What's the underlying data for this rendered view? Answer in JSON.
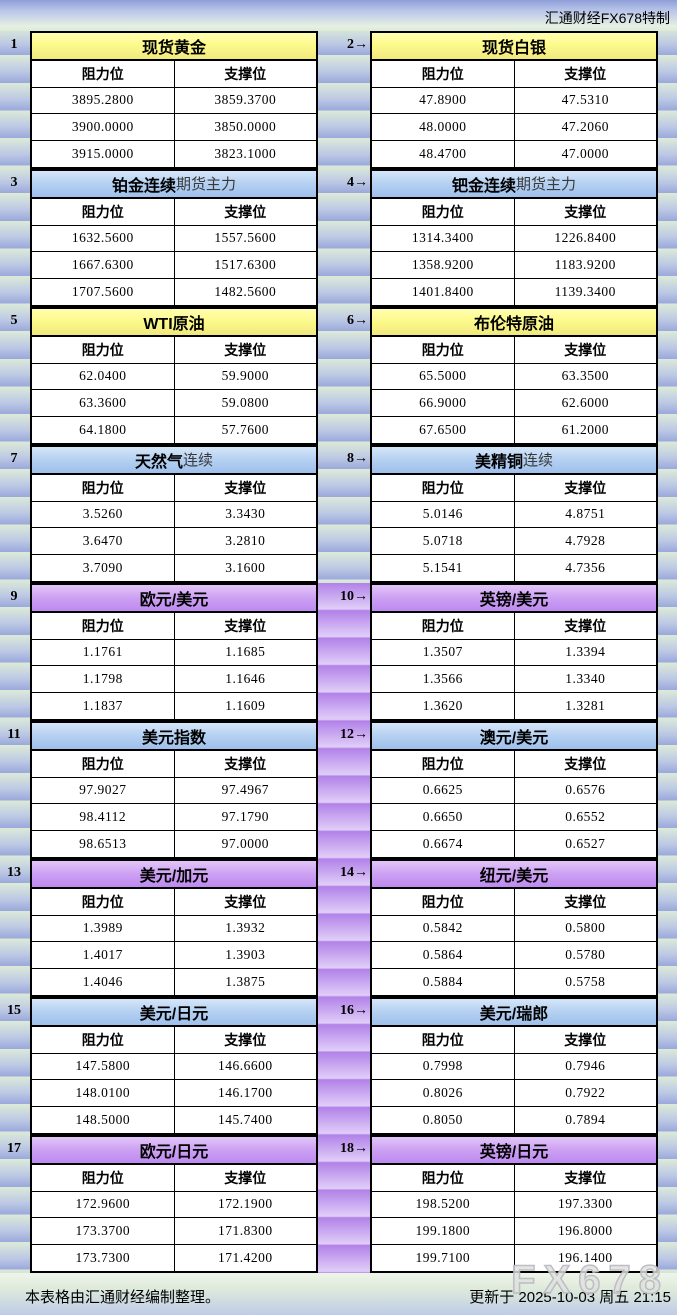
{
  "header": {
    "brand": "汇通财经FX678特制"
  },
  "labels": {
    "resistance": "阻力位",
    "support": "支撑位"
  },
  "footer": {
    "note": "本表格由汇通财经编制整理。",
    "updated": "更新于 2025-10-03 周五 21:15",
    "watermark": "FX678"
  },
  "colors": {
    "title_yellow": "#fdfa8c",
    "title_blue": "#b4d0f1",
    "title_purple": "#cda0f3",
    "stripe_green": "#dcead8",
    "stripe_blue": "#9aa8dc",
    "gap_purple": "#b282e8",
    "border": "#000000"
  },
  "tables": [
    {
      "num_label": "1",
      "title": "现货黄金",
      "suffix": "",
      "style": "yellow",
      "rows": [
        [
          "3895.2800",
          "3859.3700"
        ],
        [
          "3900.0000",
          "3850.0000"
        ],
        [
          "3915.0000",
          "3823.1000"
        ]
      ]
    },
    {
      "num_label": "2→",
      "title": "现货白银",
      "suffix": "",
      "style": "yellow",
      "rows": [
        [
          "47.8900",
          "47.5310"
        ],
        [
          "48.0000",
          "47.2060"
        ],
        [
          "48.4700",
          "47.0000"
        ]
      ]
    },
    {
      "num_label": "3",
      "title": "铂金连续",
      "suffix": "期货主力",
      "style": "blue",
      "rows": [
        [
          "1632.5600",
          "1557.5600"
        ],
        [
          "1667.6300",
          "1517.6300"
        ],
        [
          "1707.5600",
          "1482.5600"
        ]
      ]
    },
    {
      "num_label": "4→",
      "title": "钯金连续",
      "suffix": "期货主力",
      "style": "blue",
      "rows": [
        [
          "1314.3400",
          "1226.8400"
        ],
        [
          "1358.9200",
          "1183.9200"
        ],
        [
          "1401.8400",
          "1139.3400"
        ]
      ]
    },
    {
      "num_label": "5",
      "title": "WTI原油",
      "suffix": "",
      "style": "yellow",
      "rows": [
        [
          "62.0400",
          "59.9000"
        ],
        [
          "63.3600",
          "59.0800"
        ],
        [
          "64.1800",
          "57.7600"
        ]
      ]
    },
    {
      "num_label": "6→",
      "title": "布伦特原油",
      "suffix": "",
      "style": "yellow",
      "rows": [
        [
          "65.5000",
          "63.3500"
        ],
        [
          "66.9000",
          "62.6000"
        ],
        [
          "67.6500",
          "61.2000"
        ]
      ]
    },
    {
      "num_label": "7",
      "title": "天然气",
      "suffix": "连续",
      "style": "blue",
      "rows": [
        [
          "3.5260",
          "3.3430"
        ],
        [
          "3.6470",
          "3.2810"
        ],
        [
          "3.7090",
          "3.1600"
        ]
      ]
    },
    {
      "num_label": "8→",
      "title": "美精铜",
      "suffix": "连续",
      "style": "blue",
      "rows": [
        [
          "5.0146",
          "4.8751"
        ],
        [
          "5.0718",
          "4.7928"
        ],
        [
          "5.1541",
          "4.7356"
        ]
      ]
    },
    {
      "num_label": "9",
      "title": "欧元/美元",
      "suffix": "",
      "style": "purple",
      "rows": [
        [
          "1.1761",
          "1.1685"
        ],
        [
          "1.1798",
          "1.1646"
        ],
        [
          "1.1837",
          "1.1609"
        ]
      ]
    },
    {
      "num_label": "10→",
      "title": "英镑/美元",
      "suffix": "",
      "style": "purple",
      "rows": [
        [
          "1.3507",
          "1.3394"
        ],
        [
          "1.3566",
          "1.3340"
        ],
        [
          "1.3620",
          "1.3281"
        ]
      ]
    },
    {
      "num_label": "11",
      "title": "美元指数",
      "suffix": "",
      "style": "blue",
      "rows": [
        [
          "97.9027",
          "97.4967"
        ],
        [
          "98.4112",
          "97.1790"
        ],
        [
          "98.6513",
          "97.0000"
        ]
      ]
    },
    {
      "num_label": "12→",
      "title": "澳元/美元",
      "suffix": "",
      "style": "blue",
      "rows": [
        [
          "0.6625",
          "0.6576"
        ],
        [
          "0.6650",
          "0.6552"
        ],
        [
          "0.6674",
          "0.6527"
        ]
      ]
    },
    {
      "num_label": "13",
      "title": "美元/加元",
      "suffix": "",
      "style": "purple",
      "rows": [
        [
          "1.3989",
          "1.3932"
        ],
        [
          "1.4017",
          "1.3903"
        ],
        [
          "1.4046",
          "1.3875"
        ]
      ]
    },
    {
      "num_label": "14→",
      "title": "纽元/美元",
      "suffix": "",
      "style": "purple",
      "rows": [
        [
          "0.5842",
          "0.5800"
        ],
        [
          "0.5864",
          "0.5780"
        ],
        [
          "0.5884",
          "0.5758"
        ]
      ]
    },
    {
      "num_label": "15",
      "title": "美元/日元",
      "suffix": "",
      "style": "blue",
      "rows": [
        [
          "147.5800",
          "146.6600"
        ],
        [
          "148.0100",
          "146.1700"
        ],
        [
          "148.5000",
          "145.7400"
        ]
      ]
    },
    {
      "num_label": "16→",
      "title": "美元/瑞郎",
      "suffix": "",
      "style": "blue",
      "rows": [
        [
          "0.7998",
          "0.7946"
        ],
        [
          "0.8026",
          "0.7922"
        ],
        [
          "0.8050",
          "0.7894"
        ]
      ]
    },
    {
      "num_label": "17",
      "title": "欧元/日元",
      "suffix": "",
      "style": "purple",
      "rows": [
        [
          "172.9600",
          "172.1900"
        ],
        [
          "173.3700",
          "171.8300"
        ],
        [
          "173.7300",
          "171.4200"
        ]
      ]
    },
    {
      "num_label": "18→",
      "title": "英镑/日元",
      "suffix": "",
      "style": "purple",
      "rows": [
        [
          "198.5200",
          "197.3300"
        ],
        [
          "199.1800",
          "196.8000"
        ],
        [
          "199.7100",
          "196.1400"
        ]
      ]
    }
  ]
}
